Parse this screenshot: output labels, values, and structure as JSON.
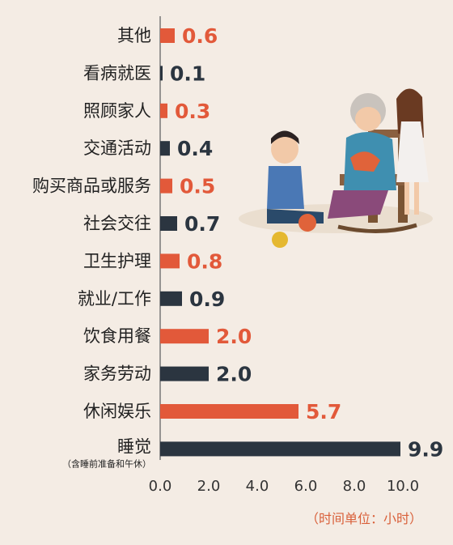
{
  "chart_data": {
    "type": "bar",
    "orientation": "horizontal",
    "categories": [
      "其他",
      "看病就医",
      "照顾家人",
      "交通活动",
      "购买商品或服务",
      "社会交往",
      "卫生护理",
      "就业/工作",
      "饮食用餐",
      "家务劳动",
      "休闲娱乐",
      "睡觉"
    ],
    "category_subtitles": {
      "睡觉": "（含睡前准备和午休）"
    },
    "values": [
      0.6,
      0.1,
      0.3,
      0.4,
      0.5,
      0.7,
      0.8,
      0.9,
      2.0,
      2.0,
      5.7,
      9.9
    ],
    "value_labels": [
      "0.6",
      "0.1",
      "0.3",
      "0.4",
      "0.5",
      "0.7",
      "0.8",
      "0.9",
      "2.0",
      "2.0",
      "5.7",
      "9.9"
    ],
    "bar_color_keys": [
      "orange",
      "dark",
      "orange",
      "dark",
      "orange",
      "dark",
      "orange",
      "dark",
      "orange",
      "dark",
      "orange",
      "dark"
    ],
    "colors": {
      "orange": "#e2593a",
      "dark": "#2b3540",
      "axis": "#777777",
      "unit_text": "#d9603a"
    },
    "x_ticks": [
      "0.0",
      "2.0",
      "4.0",
      "6.0",
      "8.0",
      "10.0"
    ],
    "xlim": [
      0,
      10
    ],
    "unit_note": "（时间单位：小时）",
    "title": "",
    "xlabel": "",
    "ylabel": "",
    "legend": "none",
    "grid": false
  },
  "illustration": {
    "description_icon": "grandmother-knitting-with-children-illustration"
  }
}
